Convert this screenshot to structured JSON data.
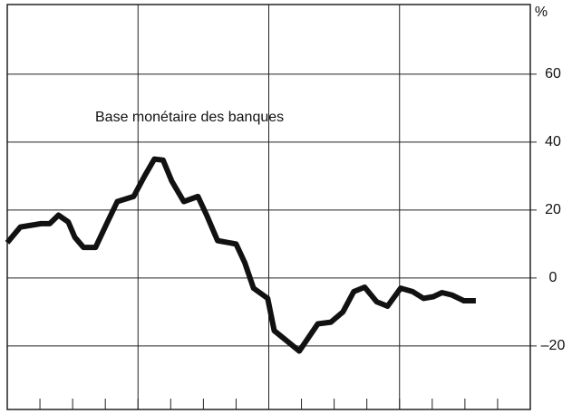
{
  "chart_data": {
    "type": "line",
    "annotation": "Base monétaire des banques",
    "y_unit": "%",
    "x": [
      0,
      1.2,
      3.1,
      3.9,
      4.7,
      5.6,
      6.2,
      7,
      8.1,
      9.2,
      10.1,
      11.6,
      12.6,
      13.5,
      14.3,
      15.1,
      16.2,
      17.5,
      18.3,
      19.3,
      21,
      21.8,
      22.6,
      23.9,
      24.5,
      26.8,
      28.5,
      29.7,
      30.8,
      31.8,
      32.8,
      33.9,
      34.9,
      36.1,
      37.2,
      38.2,
      39.1,
      39.9,
      40.8,
      41.9,
      43
    ],
    "values": [
      10.4,
      15,
      16,
      16,
      18.5,
      16.5,
      12,
      9,
      9,
      16.5,
      22.5,
      24,
      30,
      35,
      34.7,
      28.5,
      22.5,
      24,
      18.5,
      11,
      10,
      4.5,
      -3,
      -6,
      -15.5,
      -21.5,
      -13.5,
      -13,
      -10,
      -4,
      -2.7,
      -7,
      -8.3,
      -3,
      -4,
      -6,
      -5.5,
      -4.3,
      -5,
      -6.7,
      -6.7
    ],
    "color": "#111111",
    "xlim": [
      0,
      48
    ],
    "xticks": [
      0,
      3,
      6,
      9,
      12,
      15,
      18,
      21,
      24,
      27,
      30,
      33,
      36,
      39,
      42,
      45,
      48
    ],
    "xgrid": [
      0,
      12,
      24,
      36,
      48
    ],
    "ylim": [
      -38.7,
      80.5
    ],
    "yticks": [
      {
        "value": -20,
        "label": "–20"
      },
      0,
      20,
      40,
      60
    ],
    "grid": true
  }
}
